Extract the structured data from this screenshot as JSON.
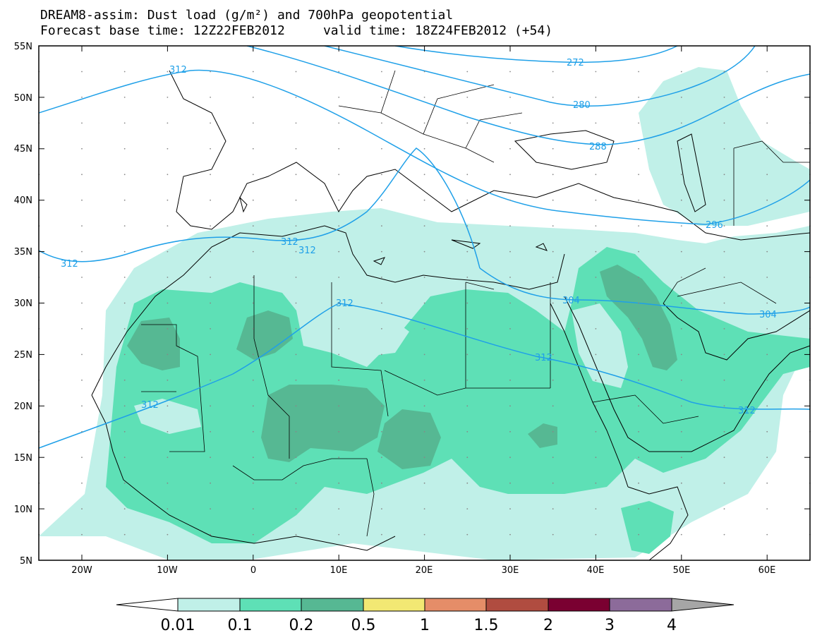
{
  "title": {
    "line1": "DREAM8-assim: Dust load (g/m²) and 700hPa geopotential",
    "line2": "Forecast base time: 12Z22FEB2012     valid time: 18Z24FEB2012 (+54)"
  },
  "axes": {
    "lat_labels": [
      "55N",
      "50N",
      "45N",
      "40N",
      "35N",
      "30N",
      "25N",
      "20N",
      "15N",
      "10N",
      "5N"
    ],
    "lon_labels": [
      "20W",
      "10W",
      "0",
      "10E",
      "20E",
      "30E",
      "40E",
      "50E",
      "60E"
    ]
  },
  "geopotential_labels": [
    "272",
    "280",
    "288",
    "296",
    "304",
    "312"
  ],
  "colorbar": {
    "labels": [
      "0.01",
      "0.1",
      "0.2",
      "0.5",
      "1",
      "1.5",
      "2",
      "3",
      "4"
    ],
    "colors": [
      "#ffffff",
      "#c0f0e8",
      "#5ee0b6",
      "#56b893",
      "#f2e873",
      "#e58d68",
      "#b04c40",
      "#7a0031",
      "#8c6b9a",
      "#a6a6a6"
    ]
  },
  "colors": {
    "dust_low": "#c0f0e8",
    "dust_mid": "#5ee0b6",
    "dust_high": "#56b893",
    "contour": "#1fa0e8",
    "border": "#000000"
  }
}
